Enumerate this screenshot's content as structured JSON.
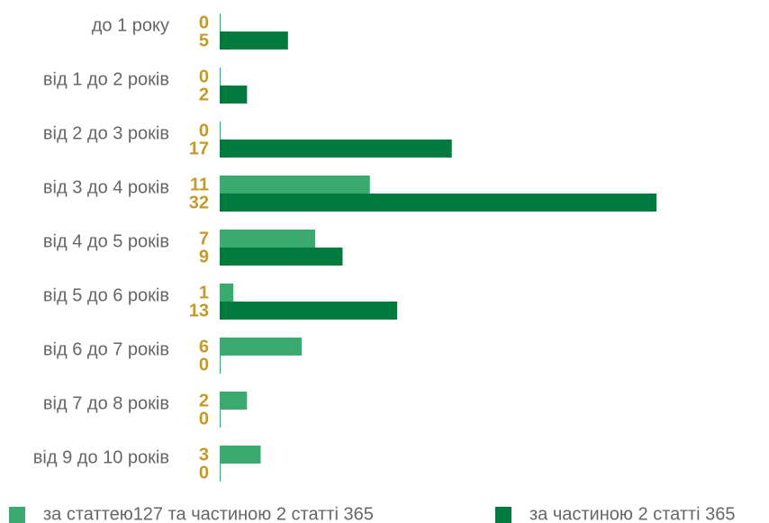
{
  "chart_data": {
    "type": "bar",
    "orientation": "horizontal",
    "categories": [
      "до 1 року",
      "від 1 до 2 років",
      "від 2 до 3 років",
      "від 3 до 4 років",
      "від 4 до 5 років",
      "від 5 до 6 років",
      "від 6 до 7 років",
      "від 7 до 8 років",
      "від 9 до 10 років"
    ],
    "series": [
      {
        "name": "за статтею127 та частиною 2 статті 365",
        "color": "#3aaa6e",
        "values": [
          0,
          0,
          0,
          11,
          7,
          1,
          6,
          2,
          3
        ]
      },
      {
        "name": "за частиною 2 статті 365",
        "color": "#007a3d",
        "values": [
          5,
          2,
          17,
          32,
          9,
          13,
          0,
          0,
          0
        ]
      }
    ],
    "label_color": "#c49a2c"
  }
}
